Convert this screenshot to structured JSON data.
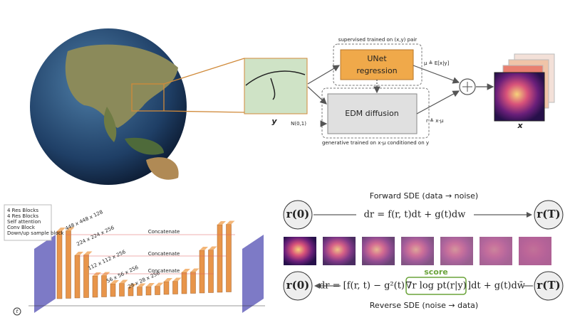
{
  "pipeline": {
    "supervised_note": "supervised trained on (x,y) pair",
    "unet": [
      "UNet",
      "regression"
    ],
    "edm": "EDM diffusion",
    "mu": "μ ≜ E[x|y]",
    "r": "r ≜ x-μ",
    "noise": "N(0,1)",
    "y_label": "y",
    "x_label": "x",
    "generative_note": "generative trained on x-μ conditioned on y"
  },
  "architecture": {
    "concat": [
      "Concatenate",
      "Concatenate",
      "Concatenate"
    ],
    "legend": [
      "4 Res Blocks",
      "4 Res Blocks",
      "Self attention",
      "Conv Block",
      "Down/up sample block"
    ],
    "dims": [
      "448 x 448 x 128",
      "224 x 224 x 256",
      "112 x 112 x 256",
      "56 x 56 x 256",
      "28 x 28 x 256"
    ],
    "input": "t"
  },
  "sde": {
    "forward_title": "Forward SDE (data → noise)",
    "r0": "r(0)",
    "rT": "r(T)",
    "forward_eq": "dr = f(r, t)dt + g(t)dw",
    "score": "score",
    "reverse_eq_a": "dr = [f(r, t) − g²(t)",
    "reverse_eq_score": "∇r log pt(r|y)",
    "reverse_eq_b": "]dt + g(t)dw̄",
    "reverse_title": "Reverse SDE (noise → data)"
  }
}
